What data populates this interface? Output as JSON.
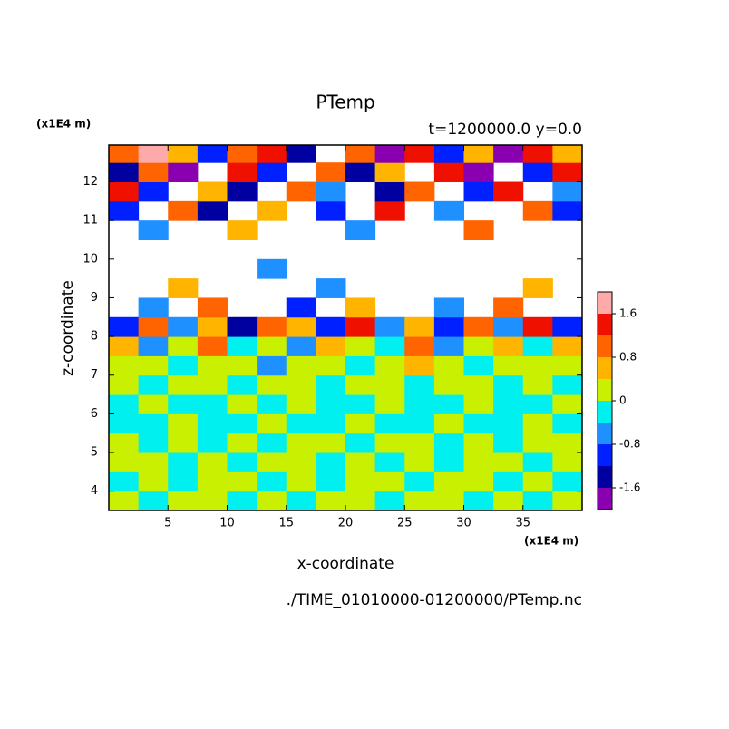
{
  "chart_data": {
    "type": "contour",
    "title": "PTemp",
    "subtitle": "t=1200000.0 y=0.0",
    "y_unit": "(x1E4 m)",
    "x_unit": "(x1E4 m)",
    "xlabel": "x-coordinate",
    "ylabel": "z-coordinate",
    "footnote": "./TIME_01010000-01200000/PTemp.nc",
    "xlim": [
      0,
      40
    ],
    "ylim": [
      3.5,
      12.95
    ],
    "xticks": [
      5,
      10,
      15,
      20,
      25,
      30,
      35
    ],
    "yticks": [
      4,
      5,
      6,
      7,
      8,
      9,
      10,
      11,
      12
    ],
    "x_edges": [
      0,
      2.5,
      5,
      7.5,
      10,
      12.5,
      15,
      17.5,
      20,
      22.5,
      25,
      27.5,
      30,
      32.5,
      35,
      37.5,
      40
    ],
    "z_edges": [
      3.5,
      4,
      4.5,
      5,
      5.5,
      6,
      6.5,
      7,
      7.5,
      8,
      8.5,
      9,
      9.5,
      10,
      10.5,
      11,
      11.5,
      12,
      12.5,
      12.95
    ],
    "values": [
      [
        0.2,
        -0.2,
        0.2,
        0.2,
        -0.2,
        0.2,
        -0.2,
        0.2,
        0.2,
        -0.2,
        0.2,
        0.2,
        -0.2,
        0.2,
        -0.2,
        0.2
      ],
      [
        -0.2,
        0.2,
        -0.2,
        0.2,
        0.2,
        -0.2,
        0.2,
        -0.2,
        0.2,
        0.2,
        -0.2,
        0.2,
        0.2,
        -0.2,
        0.2,
        -0.2
      ],
      [
        0.2,
        0.2,
        -0.2,
        0.2,
        -0.2,
        0.2,
        0.2,
        -0.2,
        0.2,
        -0.2,
        0.2,
        -0.2,
        0.2,
        0.2,
        -0.2,
        0.2
      ],
      [
        0.2,
        -0.2,
        0.2,
        -0.2,
        0.2,
        -0.2,
        0.2,
        0.2,
        -0.2,
        0.2,
        0.2,
        -0.2,
        0.2,
        -0.2,
        0.2,
        0.2
      ],
      [
        -0.2,
        -0.2,
        0.2,
        -0.2,
        -0.2,
        0.2,
        -0.2,
        -0.2,
        0.2,
        -0.2,
        -0.2,
        0.2,
        -0.2,
        -0.2,
        0.2,
        -0.2
      ],
      [
        -0.2,
        0.2,
        -0.2,
        -0.2,
        0.2,
        -0.2,
        0.2,
        -0.2,
        -0.2,
        0.2,
        -0.2,
        -0.2,
        0.2,
        -0.2,
        -0.2,
        0.2
      ],
      [
        0.2,
        -0.2,
        0.2,
        0.2,
        -0.2,
        0.2,
        0.2,
        -0.2,
        0.2,
        0.2,
        -0.2,
        0.2,
        0.2,
        -0.2,
        0.2,
        -0.2
      ],
      [
        0.2,
        0.2,
        -0.2,
        0.2,
        0.2,
        -0.6,
        0.2,
        0.2,
        -0.2,
        0.2,
        0.6,
        0.2,
        -0.2,
        0.2,
        0.2,
        0.2
      ],
      [
        0.6,
        -0.6,
        0.2,
        1.0,
        -0.2,
        0.2,
        -0.6,
        0.6,
        0.2,
        -0.2,
        1.0,
        -0.6,
        0.2,
        0.6,
        -0.2,
        0.6
      ],
      [
        -1.0,
        1.0,
        -0.6,
        0.6,
        -1.4,
        1.0,
        0.6,
        -1.0,
        1.4,
        -0.6,
        0.6,
        -1.0,
        1.0,
        -0.6,
        1.4,
        -1.0
      ],
      [
        null,
        -0.6,
        null,
        1.0,
        null,
        null,
        -1.0,
        null,
        0.6,
        null,
        null,
        -0.6,
        null,
        1.0,
        null,
        null
      ],
      [
        null,
        null,
        0.6,
        null,
        null,
        null,
        null,
        -0.6,
        null,
        null,
        null,
        null,
        null,
        null,
        0.6,
        null
      ],
      [
        null,
        null,
        null,
        null,
        null,
        -0.6,
        null,
        null,
        null,
        null,
        null,
        null,
        null,
        null,
        null,
        null
      ],
      [
        null,
        null,
        null,
        null,
        null,
        null,
        null,
        null,
        null,
        null,
        null,
        null,
        null,
        null,
        null,
        null
      ],
      [
        null,
        -0.6,
        null,
        null,
        0.6,
        null,
        null,
        null,
        -0.6,
        null,
        null,
        null,
        1.0,
        null,
        null,
        null
      ],
      [
        -1.0,
        null,
        1.0,
        -1.4,
        null,
        0.6,
        null,
        -1.0,
        null,
        1.4,
        null,
        -0.6,
        null,
        null,
        1.0,
        -1.0
      ],
      [
        1.4,
        -1.0,
        null,
        0.6,
        -1.4,
        null,
        1.0,
        -0.6,
        null,
        -1.4,
        1.0,
        null,
        -1.0,
        1.4,
        null,
        -0.6
      ],
      [
        -1.4,
        1.0,
        -1.8,
        null,
        1.4,
        -1.0,
        null,
        1.0,
        -1.4,
        0.6,
        null,
        1.4,
        -1.8,
        null,
        -1.0,
        1.4
      ],
      [
        1.0,
        1.8,
        0.6,
        -1.0,
        1.0,
        1.4,
        -1.4,
        null,
        1.0,
        -1.8,
        1.4,
        -1.0,
        0.6,
        -1.8,
        1.4,
        0.6
      ]
    ],
    "levels": [
      -2,
      -1.6,
      -1.2,
      -0.8,
      -0.4,
      0,
      0.4,
      0.8,
      1.2,
      1.6,
      2
    ],
    "colors": [
      "#8a00b0",
      "#0000a0",
      "#0020ff",
      "#1e90ff",
      "#00f0f0",
      "#c8f000",
      "#ffb400",
      "#ff6400",
      "#f01000",
      "#ffaaaa"
    ],
    "colorbar_ticks": [
      -1.6,
      -0.8,
      0,
      0.8,
      1.6
    ]
  }
}
